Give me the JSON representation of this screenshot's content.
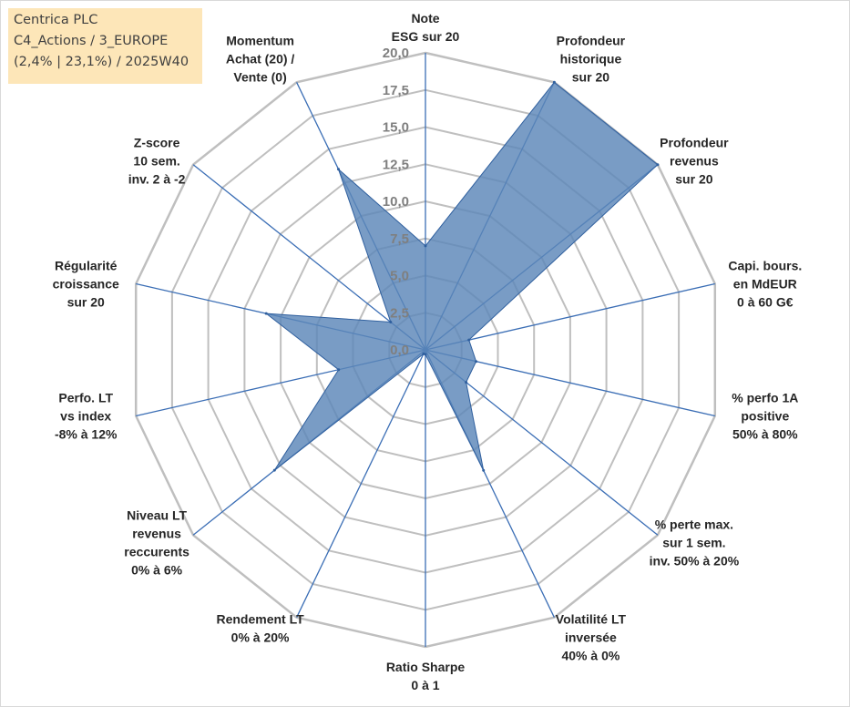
{
  "info_box": {
    "line1": "Centrica PLC",
    "line2": "C4_Actions / 3_EUROPE",
    "line3": "(2,4% | 23,1%) / 2025W40"
  },
  "colors": {
    "fill": "#5b86b8",
    "stroke": "#2f5f9e",
    "spoke": "#3b6eb5",
    "grid": "#bfbfbf",
    "info_bg": "#fde6b8"
  },
  "chart_data": {
    "type": "radar",
    "title": "",
    "range": [
      0,
      20
    ],
    "tick_step": 2.5,
    "tick_labels": [
      "0,0",
      "2,5",
      "5,0",
      "7,5",
      "10,0",
      "12,5",
      "15,0",
      "17,5",
      "20,0"
    ],
    "axes": [
      {
        "label": [
          "Note",
          "ESG sur 20"
        ]
      },
      {
        "label": [
          "Profondeur",
          "historique",
          "sur 20"
        ]
      },
      {
        "label": [
          "Profondeur",
          "revenus",
          "sur 20"
        ]
      },
      {
        "label": [
          "Capi. bours.",
          "en MdEUR",
          "0 à 60 G€"
        ]
      },
      {
        "label": [
          "% perfo 1A",
          "positive",
          "50% à 80%"
        ]
      },
      {
        "label": [
          "% perte max.",
          "sur 1 sem.",
          "inv. 50% à 20%"
        ]
      },
      {
        "label": [
          "Volatilité LT",
          "inversée",
          "40% à 0%"
        ]
      },
      {
        "label": [
          "Ratio Sharpe",
          "0 à 1"
        ]
      },
      {
        "label": [
          "Rendement LT",
          "0% à 20%"
        ]
      },
      {
        "label": [
          "Niveau LT",
          "revenus",
          "reccurents",
          "0% à 6%"
        ]
      },
      {
        "label": [
          "Perfo. LT",
          "vs index",
          "-8% à 12%"
        ]
      },
      {
        "label": [
          "Régularité",
          "croissance",
          "sur 20"
        ]
      },
      {
        "label": [
          "Z-score",
          "10 sem.",
          "inv. 2 à -2"
        ]
      },
      {
        "label": [
          "Momentum",
          "Achat (20) /",
          "Vente (0)"
        ]
      }
    ],
    "series": [
      {
        "values": [
          7.0,
          20.0,
          20.0,
          3.0,
          3.5,
          3.5,
          9.0,
          0.3,
          0.3,
          13.0,
          6.0,
          11.0,
          3.0,
          13.5
        ]
      }
    ],
    "grid": true
  }
}
